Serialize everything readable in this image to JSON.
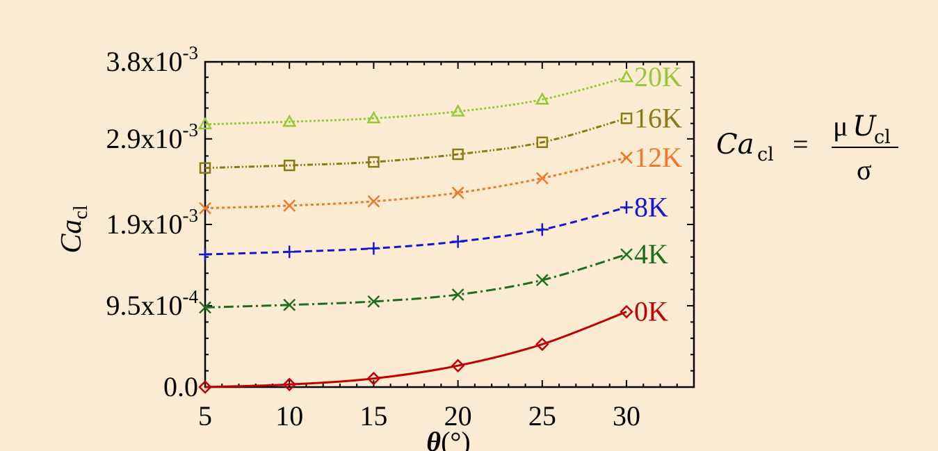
{
  "chart_data": {
    "type": "line",
    "xlabel_sym": "θ",
    "xlabel_unit": "(°)",
    "ylabel_base": "Ca",
    "ylabel_sub": "cl",
    "x": [
      5,
      10,
      15,
      20,
      25,
      30
    ],
    "xlim": [
      5,
      34
    ],
    "ylim": [
      0,
      0.0038
    ],
    "xticks": [
      "5",
      "10",
      "15",
      "20",
      "25",
      "30"
    ],
    "yticks": [
      {
        "value": 0,
        "mant": "0.0",
        "exp": ""
      },
      {
        "value": 0.00095,
        "mant": "9.5x10",
        "exp": "-4"
      },
      {
        "value": 0.0019,
        "mant": "1.9x10",
        "exp": "-3"
      },
      {
        "value": 0.0029,
        "mant": "2.9x10",
        "exp": "-3"
      },
      {
        "value": 0.0038,
        "mant": "3.8x10",
        "exp": "-3"
      }
    ],
    "series": [
      {
        "name": "0K",
        "color": "#c00000",
        "marker": "diamond",
        "dash": "",
        "values": [
          0.0,
          3e-05,
          0.0001,
          0.00025,
          0.0005,
          0.00088
        ]
      },
      {
        "name": "4K",
        "color": "#1e6e1e",
        "marker": "x",
        "dash": "14 5 3 5",
        "values": [
          0.00093,
          0.00096,
          0.001,
          0.00108,
          0.00125,
          0.00155
        ]
      },
      {
        "name": "8K",
        "color": "#1414d2",
        "marker": "plus",
        "dash": "10 6",
        "values": [
          0.00155,
          0.00158,
          0.00162,
          0.0017,
          0.00184,
          0.0021
        ]
      },
      {
        "name": "12K",
        "color": "#f07828",
        "marker": "x",
        "dash": "4 4",
        "values": [
          0.00209,
          0.00212,
          0.00217,
          0.00227,
          0.00244,
          0.00268
        ]
      },
      {
        "name": "16K",
        "color": "#8c7814",
        "marker": "square",
        "dash": "8 3 2 3 2 3",
        "values": [
          0.00256,
          0.00259,
          0.00263,
          0.00272,
          0.00286,
          0.00314
        ]
      },
      {
        "name": "20K",
        "color": "#96c83c",
        "marker": "triangle",
        "dash": "3 3",
        "values": [
          0.00307,
          0.0031,
          0.00314,
          0.00322,
          0.00336,
          0.00362
        ]
      }
    ]
  },
  "formula": {
    "lhs_base": "Ca",
    "lhs_sub": "cl",
    "equals": "=",
    "num_mu": "μ",
    "num_base": "U",
    "num_sub": "cl",
    "den": "σ"
  }
}
